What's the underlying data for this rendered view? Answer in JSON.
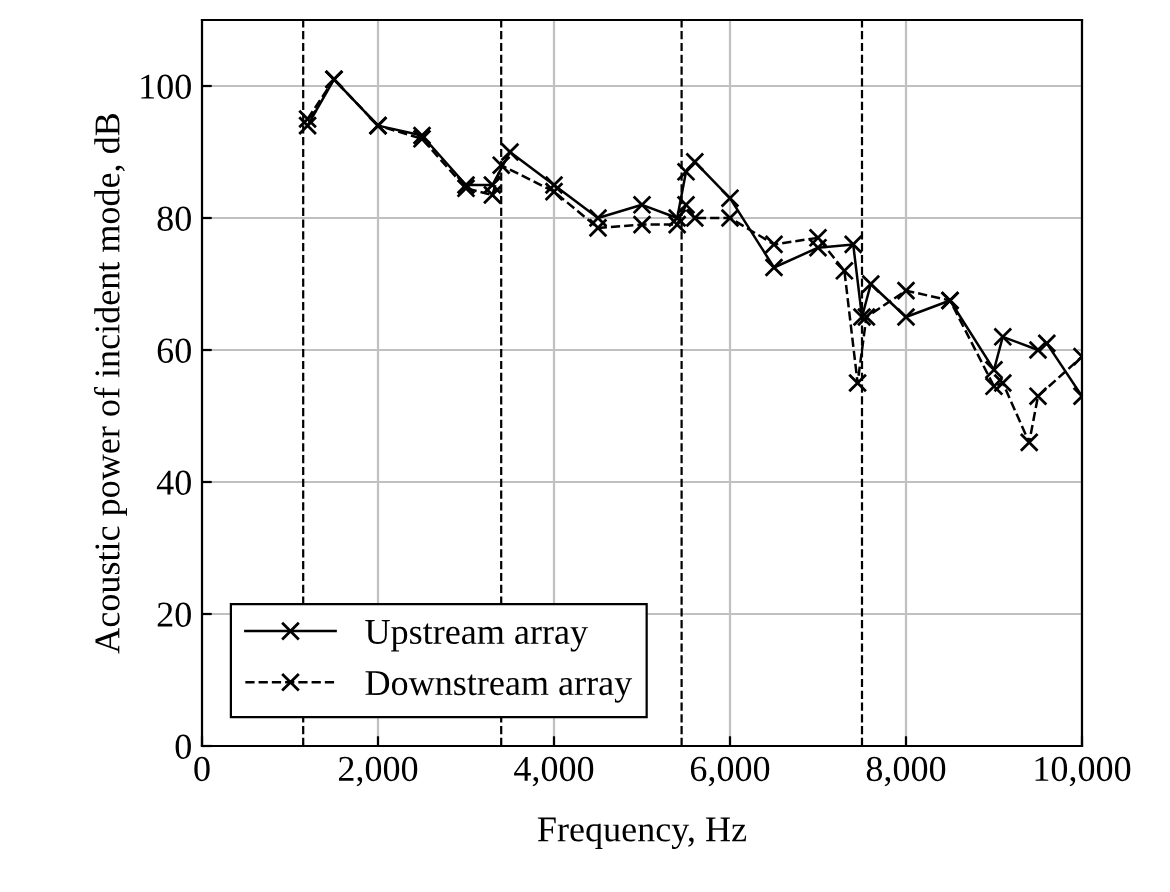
{
  "chart_data": {
    "type": "line",
    "xlabel": "Frequency, Hz",
    "ylabel": "Acoustic power of incident mode, dB",
    "xlim": [
      0,
      10000
    ],
    "xticks": [
      {
        "value": 0,
        "label": "0"
      },
      {
        "value": 2000,
        "label": "2,000"
      },
      {
        "value": 4000,
        "label": "4,000"
      },
      {
        "value": 6000,
        "label": "6,000"
      },
      {
        "value": 8000,
        "label": "8,000"
      },
      {
        "value": 10000,
        "label": "10,000"
      }
    ],
    "ylim": [
      0,
      110
    ],
    "yticks": [
      0,
      20,
      40,
      60,
      80,
      100
    ],
    "grid": true,
    "legend": "bottom left",
    "marker": "cross",
    "series": [
      {
        "name": "Upstream array",
        "color": "#000000",
        "line_style": "solid",
        "x": [
          1200,
          1500,
          2000,
          2500,
          3000,
          3300,
          3500,
          4000,
          4500,
          5000,
          5400,
          5500,
          5600,
          6000,
          6500,
          7000,
          7400,
          7500,
          7600,
          8000,
          8500,
          9000,
          9100,
          9500,
          9600,
          10000
        ],
        "values": [
          94,
          101,
          94,
          92.5,
          85,
          85,
          90,
          85,
          80,
          82,
          80,
          87,
          88.5,
          83,
          72.5,
          75.5,
          76,
          65,
          70,
          65,
          67.5,
          57,
          62,
          60,
          61,
          53
        ]
      },
      {
        "name": "Downstream array",
        "color": "#000000",
        "line_style": "dashed",
        "x": [
          1200,
          1500,
          2000,
          2500,
          3000,
          3300,
          3400,
          4000,
          4500,
          5000,
          5400,
          5500,
          5600,
          6000,
          6500,
          7000,
          7300,
          7450,
          7550,
          8000,
          8500,
          9000,
          9100,
          9400,
          9500,
          10000
        ],
        "values": [
          95,
          101,
          94,
          92,
          84.5,
          83.5,
          88,
          84,
          78.5,
          79,
          79,
          82,
          80,
          80,
          76,
          77,
          72,
          55,
          65,
          69,
          67.5,
          54.5,
          55,
          46,
          53,
          59
        ]
      }
    ],
    "ref_lines": [
      {
        "axis": "x",
        "value": 1150,
        "line_style": "dashed",
        "color": "#000000"
      },
      {
        "axis": "x",
        "value": 3400,
        "line_style": "dashed",
        "color": "#000000"
      },
      {
        "axis": "x",
        "value": 5450,
        "line_style": "dashed",
        "color": "#000000"
      },
      {
        "axis": "x",
        "value": 7500,
        "line_style": "dashed",
        "color": "#000000"
      }
    ]
  }
}
